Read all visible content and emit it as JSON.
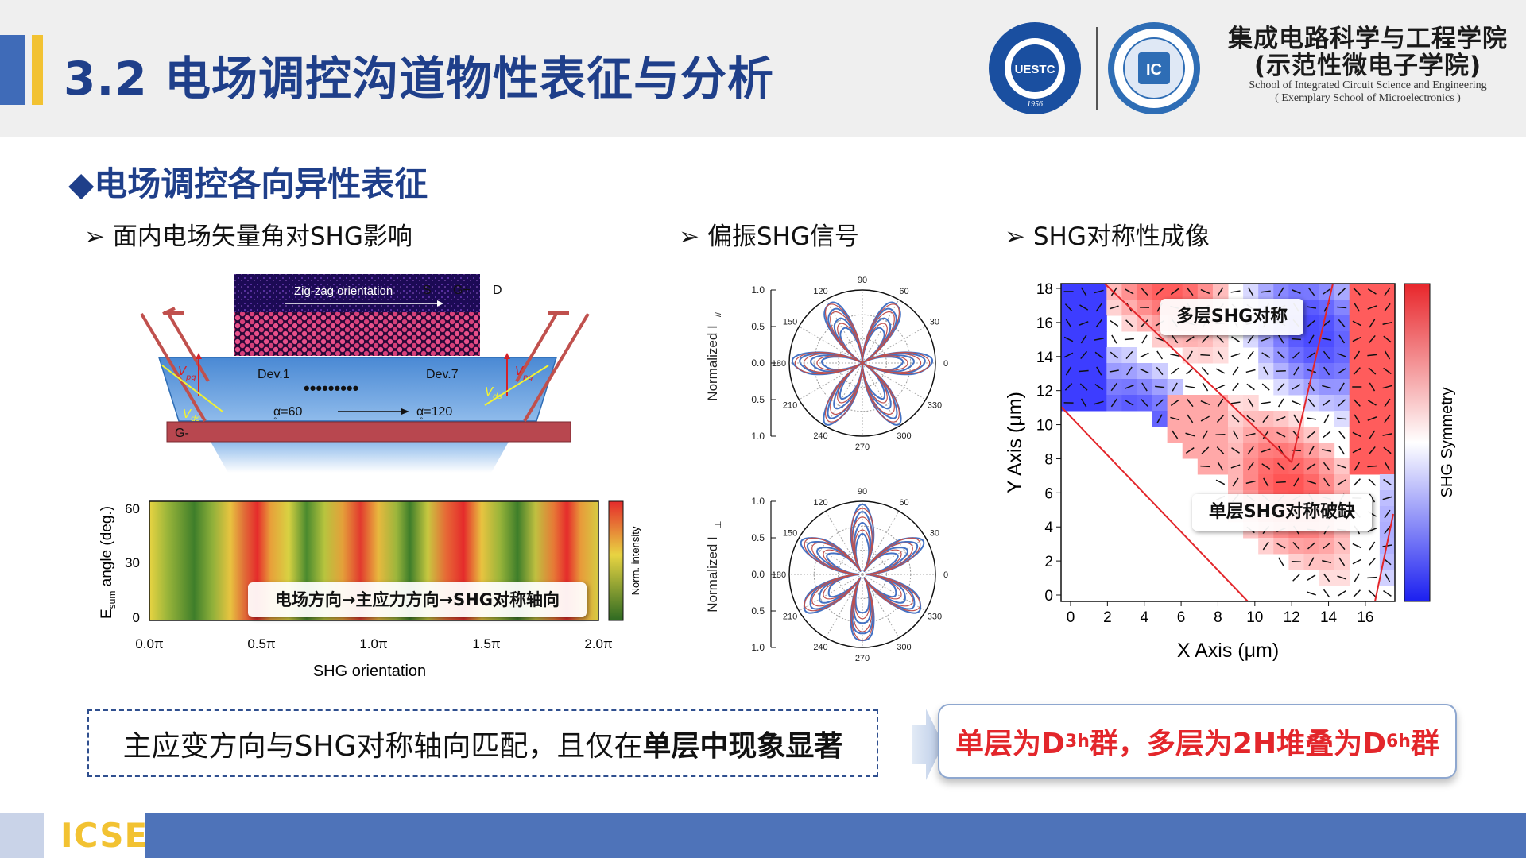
{
  "header": {
    "title": "3.2 电场调控沟道物性表征与分析",
    "school_cn_1": "集成电路科学与工程学院",
    "school_cn_2": "(示范性微电子学院)",
    "school_en_1": "School of Integrated Circuit Science and Engineering",
    "school_en_2": "( Exemplary School of Microelectronics )",
    "uestc_logo_text": "UESTC",
    "uestc_year": "1956",
    "ic_logo_text": "IC"
  },
  "section_title": "◆电场调控各向异性表征",
  "subtitles": {
    "left": "➢ 面内电场矢量角对SHG影响",
    "middle": "➢ 偏振SHG信号",
    "right": "➢ SHG对称性成像"
  },
  "device": {
    "zigzag": "Zig-zag orientation",
    "s": "S",
    "gplus": "G+",
    "d": "D",
    "dev1": "Dev.1",
    "dev7": "Dev.7",
    "dots": "•••••••••",
    "alpha60": "α=60",
    "alpha120": "α=120",
    "deg": "°",
    "gminus": "G-",
    "vpg": "V",
    "vpg_sub": "pg",
    "vds": "V",
    "vds_sub": "ds"
  },
  "heatmap": {
    "ylabel": "E",
    "ylabel_sub": "sum",
    "ylabel_rest": " angle (deg.)",
    "yticks": [
      "60",
      "30",
      "0"
    ],
    "xticks": [
      "0.0π",
      "0.5π",
      "1.0π",
      "1.5π",
      "2.0π"
    ],
    "xlabel": "SHG orientation",
    "colorbar_label": "Norm. intensity",
    "callout": "电场方向→主应力方向→SHG对称轴向"
  },
  "polar_top": {
    "ylabel": "Normalized I",
    "ylabel_sub": "//",
    "radial_ticks": [
      "1.0",
      "0.5",
      "0.0",
      "0.5",
      "1.0"
    ],
    "angles": [
      "0",
      "30",
      "60",
      "90",
      "120",
      "150",
      "180",
      "210",
      "240",
      "270",
      "300",
      "330"
    ]
  },
  "polar_bottom": {
    "ylabel": "Normalized I",
    "ylabel_sub": "⊥",
    "radial_ticks": [
      "1.0",
      "0.5",
      "0.0",
      "0.5",
      "1.0"
    ],
    "angles": [
      "0",
      "30",
      "60",
      "90",
      "120",
      "150",
      "180",
      "210",
      "240",
      "270",
      "300",
      "330"
    ]
  },
  "sym_map": {
    "xlabel": "X Axis (μm)",
    "ylabel": "Y Axis (μm)",
    "xticks": [
      "0",
      "2",
      "4",
      "6",
      "8",
      "10",
      "12",
      "14",
      "16"
    ],
    "yticks": [
      "0",
      "2",
      "4",
      "6",
      "8",
      "10",
      "12",
      "14",
      "16",
      "18"
    ],
    "colorbar_label": "SHG Symmetry",
    "callout_multi": "多层SHG对称",
    "callout_single": "单层SHG对称破缺"
  },
  "summary": {
    "text_normal": "主应变方向与SHG对称轴向匹配，且仅在",
    "text_bold": "单层中现象显著"
  },
  "result": {
    "p1": "单层为D",
    "s1": "3h",
    "p2": "群，多层为2H堆叠为D",
    "s2": "6h",
    "p3": "群"
  },
  "footer": {
    "label": "ICSE"
  },
  "colors": {
    "title": "#1f3f8a",
    "accent_blue": "#3f6bb8",
    "accent_yellow": "#f2c232",
    "result_red": "#e3262b",
    "footer_blue": "#4e73b9"
  }
}
